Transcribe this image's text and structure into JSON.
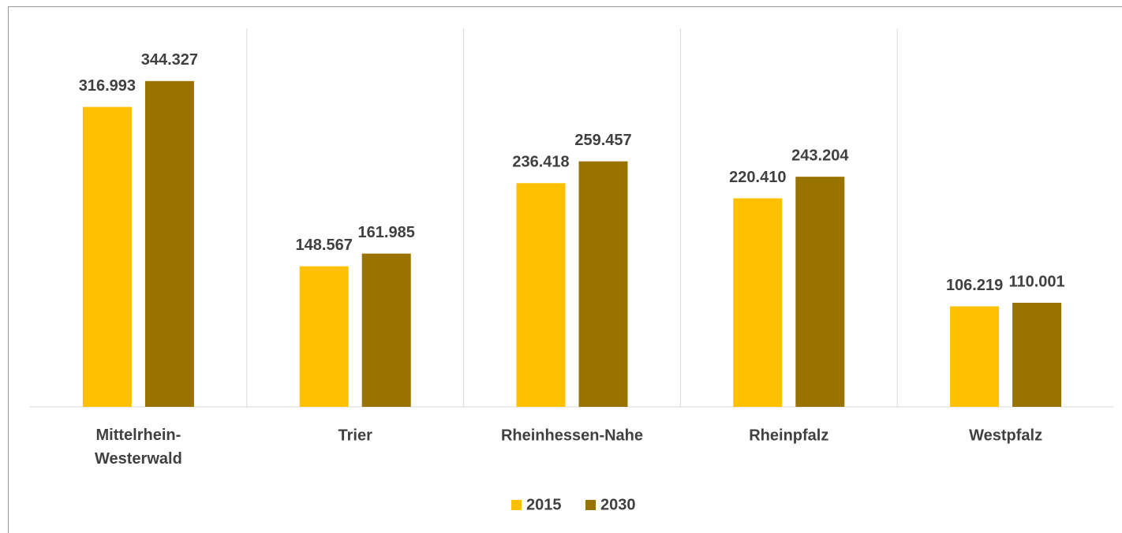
{
  "chart_data": {
    "type": "bar",
    "categories": [
      "Mittelrhein-\nWesterwald",
      "Trier",
      "Rheinhessen-Nahe",
      "Rheinpfalz",
      "Westpfalz"
    ],
    "series": [
      {
        "name": "2015",
        "color": "#FFC000",
        "values": [
          316993,
          148567,
          236418,
          220410,
          106219
        ],
        "value_labels": [
          "316.993",
          "148.567",
          "236.418",
          "220.410",
          "106.219"
        ]
      },
      {
        "name": "2030",
        "color": "#997300",
        "values": [
          344327,
          161985,
          259457,
          243204,
          110001
        ],
        "value_labels": [
          "344.327",
          "161.985",
          "259.457",
          "243.204",
          "110.001"
        ]
      }
    ],
    "ylim": [
      0,
      400000
    ],
    "legend": "bottom"
  }
}
